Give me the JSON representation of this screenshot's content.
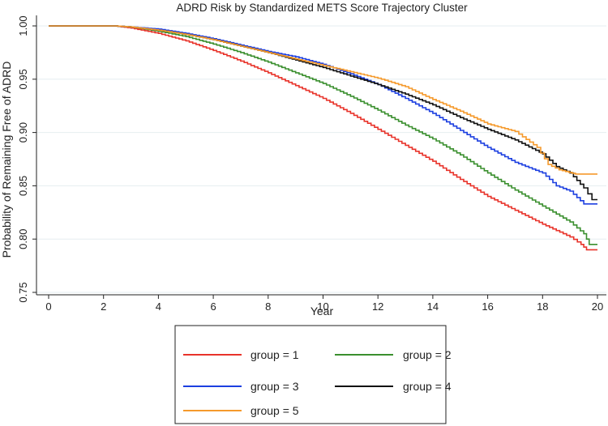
{
  "chart_data": {
    "type": "line",
    "title": "ADRD Risk by Standardized METS Score Trajectory Cluster",
    "xlabel": "Year",
    "ylabel": "Probability of Remaining Free of ADRD",
    "xlim": [
      0,
      20
    ],
    "ylim": [
      0.75,
      1.0
    ],
    "xticks": [
      0,
      2,
      4,
      6,
      8,
      10,
      12,
      14,
      16,
      18,
      20
    ],
    "yticks": [
      0.75,
      0.8,
      0.85,
      0.9,
      0.95,
      1.0
    ],
    "ytick_labels": [
      "0.75",
      "0.80",
      "0.85",
      "0.90",
      "0.95",
      "1.00"
    ],
    "grid": true,
    "legend_position": "bottom",
    "series": [
      {
        "name": "group = 1",
        "color": "#e8332a",
        "points": [
          [
            0,
            1.0
          ],
          [
            2.4,
            1.0
          ],
          [
            3,
            0.998
          ],
          [
            4,
            0.993
          ],
          [
            5,
            0.986
          ],
          [
            6,
            0.977
          ],
          [
            7,
            0.967
          ],
          [
            8,
            0.956
          ],
          [
            9,
            0.944
          ],
          [
            10,
            0.932
          ],
          [
            11,
            0.918
          ],
          [
            12,
            0.903
          ],
          [
            13,
            0.888
          ],
          [
            14,
            0.873
          ],
          [
            15,
            0.856
          ],
          [
            16,
            0.84
          ],
          [
            17,
            0.827
          ],
          [
            18,
            0.814
          ],
          [
            19,
            0.802
          ],
          [
            19.4,
            0.795
          ],
          [
            19.6,
            0.79
          ],
          [
            20,
            0.79
          ]
        ]
      },
      {
        "name": "group = 2",
        "color": "#3a8f2e",
        "points": [
          [
            0,
            1.0
          ],
          [
            2.4,
            1.0
          ],
          [
            3,
            0.999
          ],
          [
            4,
            0.995
          ],
          [
            5,
            0.99
          ],
          [
            6,
            0.983
          ],
          [
            7,
            0.975
          ],
          [
            8,
            0.966
          ],
          [
            9,
            0.956
          ],
          [
            10,
            0.946
          ],
          [
            11,
            0.934
          ],
          [
            12,
            0.921
          ],
          [
            13,
            0.907
          ],
          [
            14,
            0.894
          ],
          [
            15,
            0.879
          ],
          [
            16,
            0.862
          ],
          [
            17,
            0.846
          ],
          [
            18,
            0.831
          ],
          [
            19,
            0.816
          ],
          [
            19.5,
            0.805
          ],
          [
            19.7,
            0.795
          ],
          [
            20,
            0.795
          ]
        ]
      },
      {
        "name": "group = 3",
        "color": "#1c3fe0",
        "points": [
          [
            0,
            1.0
          ],
          [
            2.4,
            1.0
          ],
          [
            3,
            0.999
          ],
          [
            4,
            0.997
          ],
          [
            5,
            0.993
          ],
          [
            6,
            0.988
          ],
          [
            7,
            0.982
          ],
          [
            8,
            0.976
          ],
          [
            9,
            0.971
          ],
          [
            10,
            0.964
          ],
          [
            11,
            0.955
          ],
          [
            12,
            0.945
          ],
          [
            13,
            0.932
          ],
          [
            14,
            0.918
          ],
          [
            15,
            0.902
          ],
          [
            16,
            0.886
          ],
          [
            17,
            0.872
          ],
          [
            18,
            0.862
          ],
          [
            18.5,
            0.85
          ],
          [
            19,
            0.845
          ],
          [
            19.5,
            0.833
          ],
          [
            20,
            0.833
          ]
        ]
      },
      {
        "name": "group = 4",
        "color": "#111111",
        "points": [
          [
            0,
            1.0
          ],
          [
            2.4,
            1.0
          ],
          [
            3,
            0.999
          ],
          [
            4,
            0.996
          ],
          [
            5,
            0.992
          ],
          [
            6,
            0.987
          ],
          [
            7,
            0.981
          ],
          [
            8,
            0.975
          ],
          [
            9,
            0.968
          ],
          [
            10,
            0.961
          ],
          [
            11,
            0.953
          ],
          [
            12,
            0.945
          ],
          [
            13,
            0.936
          ],
          [
            14,
            0.926
          ],
          [
            15,
            0.914
          ],
          [
            16,
            0.903
          ],
          [
            17,
            0.893
          ],
          [
            18,
            0.88
          ],
          [
            18.5,
            0.868
          ],
          [
            19,
            0.862
          ],
          [
            19.5,
            0.848
          ],
          [
            19.8,
            0.837
          ],
          [
            20,
            0.837
          ]
        ]
      },
      {
        "name": "group = 5",
        "color": "#f59a2c",
        "points": [
          [
            0,
            1.0
          ],
          [
            2.4,
            1.0
          ],
          [
            3,
            0.999
          ],
          [
            4,
            0.996
          ],
          [
            5,
            0.992
          ],
          [
            6,
            0.987
          ],
          [
            7,
            0.981
          ],
          [
            8,
            0.975
          ],
          [
            9,
            0.969
          ],
          [
            10,
            0.963
          ],
          [
            11,
            0.957
          ],
          [
            12,
            0.951
          ],
          [
            13,
            0.943
          ],
          [
            14,
            0.931
          ],
          [
            15,
            0.92
          ],
          [
            16,
            0.908
          ],
          [
            17,
            0.901
          ],
          [
            17.8,
            0.886
          ],
          [
            18.2,
            0.87
          ],
          [
            18.6,
            0.865
          ],
          [
            19.2,
            0.861
          ],
          [
            20,
            0.861
          ]
        ]
      }
    ]
  }
}
